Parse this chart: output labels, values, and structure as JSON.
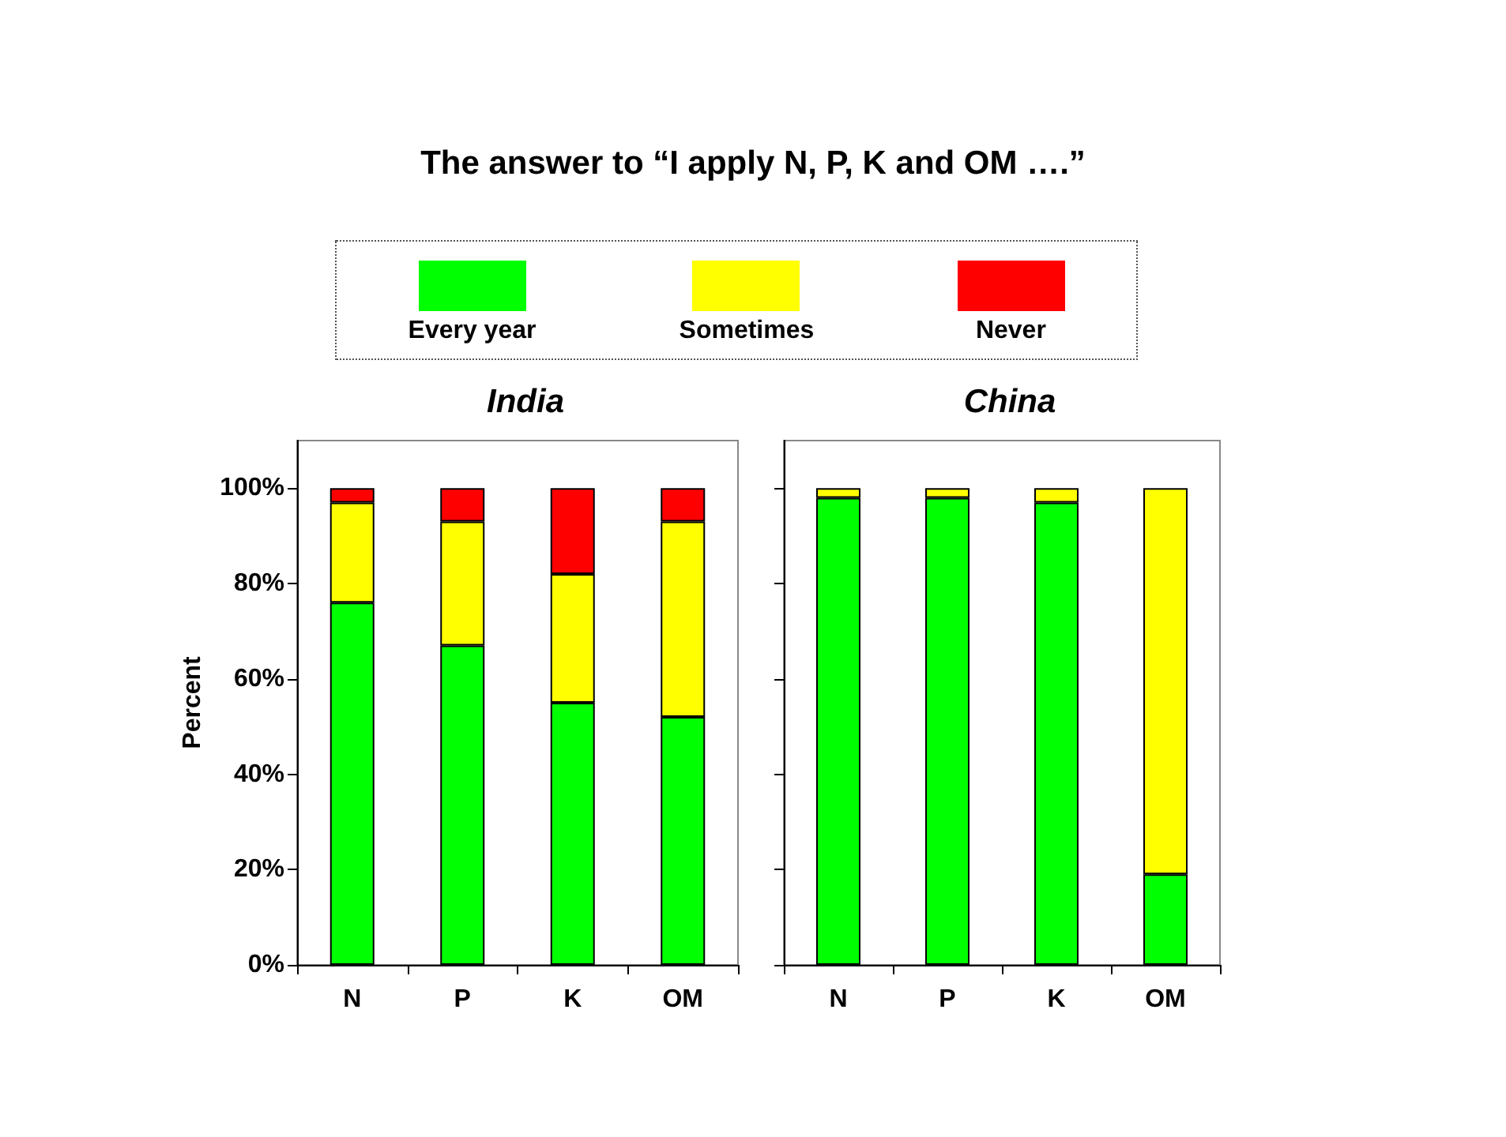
{
  "chart_data": [
    {
      "type": "bar",
      "title": "The answer to “I apply N, P, K and OM ….”",
      "subtitle": "India",
      "ylabel": "Percent",
      "categories": [
        "N",
        "P",
        "K",
        "OM"
      ],
      "stacked": true,
      "legend": "top",
      "grid": false,
      "ylim": [
        0,
        110
      ],
      "yticks": [
        {
          "value": 0,
          "label": "0%"
        },
        {
          "value": 20,
          "label": "20%"
        },
        {
          "value": 40,
          "label": "40%"
        },
        {
          "value": 60,
          "label": "60%"
        },
        {
          "value": 80,
          "label": "80%"
        },
        {
          "value": 100,
          "label": "100%"
        }
      ],
      "series": [
        {
          "name": "Every year",
          "color": "#00ff00",
          "values": [
            76,
            67,
            55,
            52
          ]
        },
        {
          "name": "Sometimes",
          "color": "#ffff00",
          "values": [
            21,
            26,
            27,
            41
          ]
        },
        {
          "name": "Never",
          "color": "#ff0000",
          "values": [
            3,
            7,
            18,
            7
          ]
        }
      ]
    },
    {
      "type": "bar",
      "title": "China",
      "categories": [
        "N",
        "P",
        "K",
        "OM"
      ],
      "stacked": true,
      "grid": false,
      "tick_labels": "x",
      "ylim": [
        0,
        110
      ],
      "yticks": [
        {
          "value": 0,
          "label": null
        },
        {
          "value": 20,
          "label": null
        },
        {
          "value": 40,
          "label": null
        },
        {
          "value": 60,
          "label": null
        },
        {
          "value": 80,
          "label": null
        },
        {
          "value": 100,
          "label": null
        }
      ],
      "series": [
        {
          "color": "#00ff00",
          "values": [
            98,
            98,
            97,
            19
          ]
        },
        {
          "color": "#ffff00",
          "values": [
            2,
            2,
            3,
            81
          ]
        }
      ]
    }
  ]
}
